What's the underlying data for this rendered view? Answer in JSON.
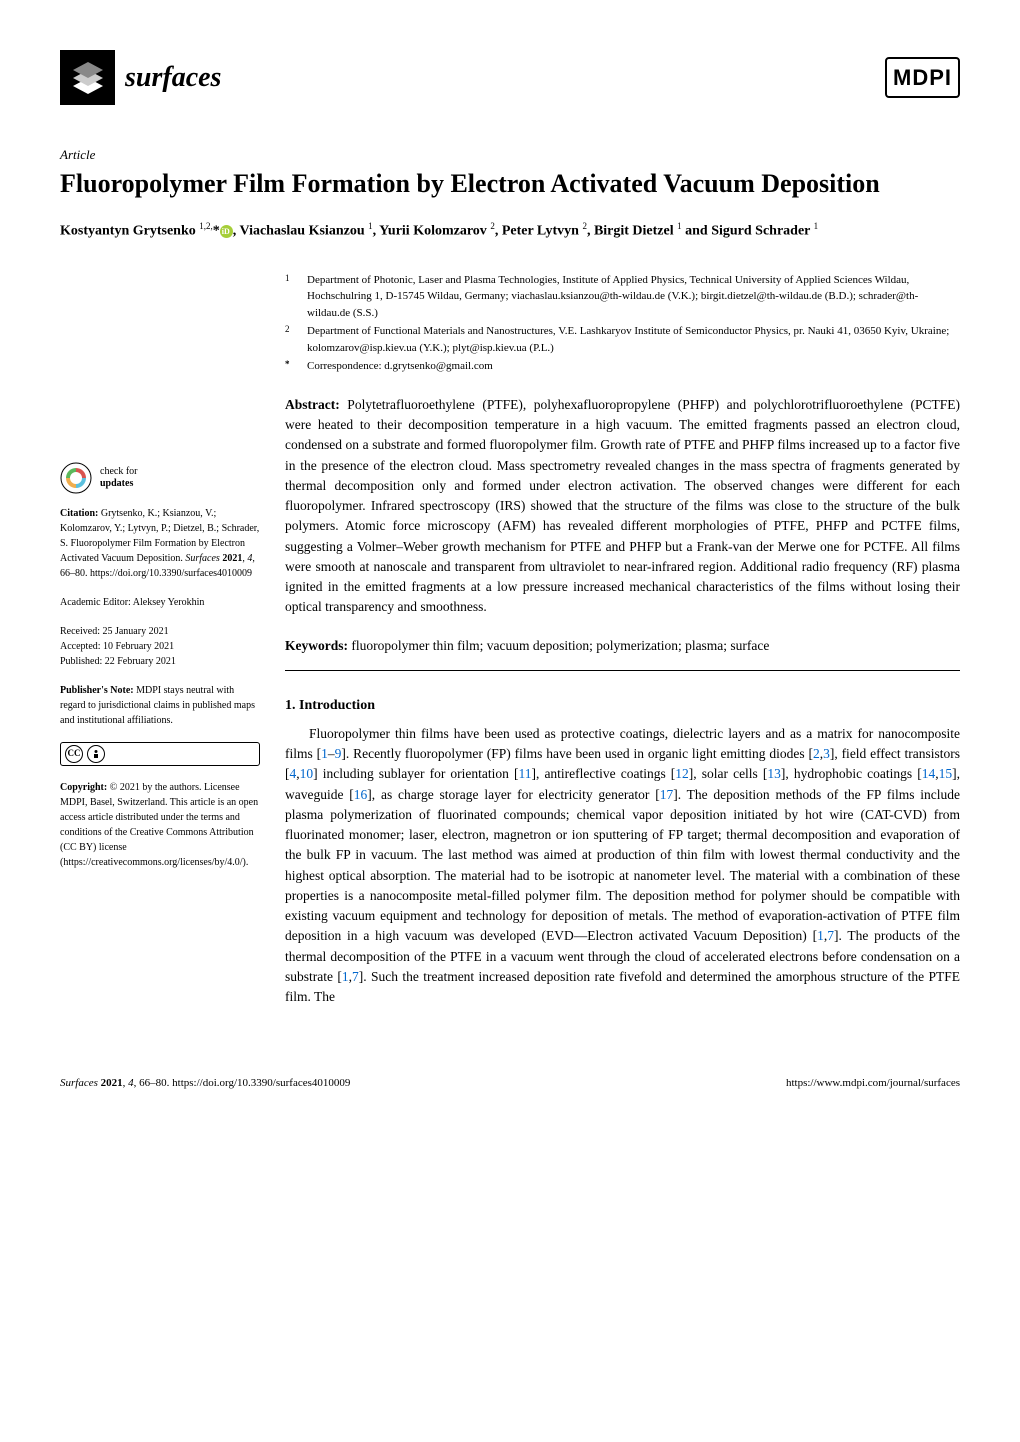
{
  "header": {
    "journal_name": "surfaces",
    "publisher_logo": "MDPI"
  },
  "article": {
    "type": "Article",
    "title": "Fluoropolymer Film Formation by Electron Activated Vacuum Deposition",
    "authors_line": "Kostyantyn Grytsenko ¹,²,* , Viachaslau Ksianzou ¹, Yurii Kolomzarov ², Peter Lytvyn ², Birgit Dietzel ¹ and Sigurd Schrader ¹"
  },
  "affiliations": {
    "a1": {
      "marker": "1",
      "text": "Department of Photonic, Laser and Plasma Technologies, Institute of Applied Physics, Technical University of Applied Sciences Wildau, Hochschulring 1, D-15745 Wildau, Germany; viachaslau.ksianzou@th-wildau.de (V.K.); birgit.dietzel@th-wildau.de (B.D.); schrader@th-wildau.de (S.S.)"
    },
    "a2": {
      "marker": "2",
      "text": "Department of Functional Materials and Nanostructures, V.E. Lashkaryov Institute of Semiconductor Physics, pr. Nauki 41, 03650 Kyiv, Ukraine; kolomzarov@isp.kiev.ua (Y.K.); plyt@isp.kiev.ua (P.L.)"
    },
    "corr": {
      "marker": "*",
      "text": "Correspondence: d.grytsenko@gmail.com"
    }
  },
  "abstract": {
    "label": "Abstract:",
    "text": " Polytetrafluoroethylene (PTFE), polyhexafluoropropylene (PHFP) and polychlorotrifluoroethylene (PCTFE) were heated to their decomposition temperature in a high vacuum. The emitted fragments passed an electron cloud, condensed on a substrate and formed fluoropolymer film. Growth rate of PTFE and PHFP films increased up to a factor five in the presence of the electron cloud. Mass spectrometry revealed changes in the mass spectra of fragments generated by thermal decomposition only and formed under electron activation. The observed changes were different for each fluoropolymer. Infrared spectroscopy (IRS) showed that the structure of the films was close to the structure of the bulk polymers. Atomic force microscopy (AFM) has revealed different morphologies of PTFE, PHFP and PCTFE films, suggesting a Volmer–Weber growth mechanism for PTFE and PHFP but a Frank-van der Merwe one for PCTFE. All films were smooth at nanoscale and transparent from ultraviolet to near-infrared region. Additional radio frequency (RF) plasma ignited in the emitted fragments at a low pressure increased mechanical characteristics of the films without losing their optical transparency and smoothness."
  },
  "keywords": {
    "label": "Keywords:",
    "text": " fluoropolymer thin film; vacuum deposition; polymerization; plasma; surface"
  },
  "sidebar": {
    "check_updates": {
      "line1": "check for",
      "line2": "updates"
    },
    "citation": "Citation: Grytsenko, K.; Ksianzou, V.; Kolomzarov, Y.; Lytvyn, P.; Dietzel, B.; Schrader, S. Fluoropolymer Film Formation by Electron Activated Vacuum Deposition. Surfaces 2021, 4, 66–80. https://doi.org/10.3390/surfaces4010009",
    "editor": "Academic Editor: Aleksey Yerokhin",
    "received": "Received: 25 January 2021",
    "accepted": "Accepted: 10 February 2021",
    "published": "Published: 22 February 2021",
    "publishers_note": "Publisher's Note: MDPI stays neutral with regard to jurisdictional claims in published maps and institutional affiliations.",
    "copyright": "Copyright: © 2021 by the authors. Licensee MDPI, Basel, Switzerland. This article is an open access article distributed under the terms and conditions of the Creative Commons Attribution (CC BY) license (https://creativecommons.org/licenses/by/4.0/)."
  },
  "section1": {
    "heading": "1. Introduction",
    "body_html": "Fluoropolymer thin films have been used as protective coatings, dielectric layers and as a matrix for nanocomposite films [<span class='ref-link'>1</span>–<span class='ref-link'>9</span>]. Recently fluoropolymer (FP) films have been used in organic light emitting diodes [<span class='ref-link'>2</span>,<span class='ref-link'>3</span>], field effect transistors [<span class='ref-link'>4</span>,<span class='ref-link'>10</span>] including sublayer for orientation [<span class='ref-link'>11</span>], antireflective coatings [<span class='ref-link'>12</span>], solar cells [<span class='ref-link'>13</span>], hydrophobic coatings [<span class='ref-link'>14</span>,<span class='ref-link'>15</span>], waveguide [<span class='ref-link'>16</span>], as charge storage layer for electricity generator [<span class='ref-link'>17</span>]. The deposition methods of the FP films include plasma polymerization of fluorinated compounds; chemical vapor deposition initiated by hot wire (CAT-CVD) from fluorinated monomer; laser, electron, magnetron or ion sputtering of FP target; thermal decomposition and evaporation of the bulk FP in vacuum. The last method was aimed at production of thin film with lowest thermal conductivity and the highest optical absorption. The material had to be isotropic at nanometer level. The material with a combination of these properties is a nanocomposite metal-filled polymer film. The deposition method for polymer should be compatible with existing vacuum equipment and technology for deposition of metals. The method of evaporation-activation of PTFE film deposition in a high vacuum was developed (EVD—Electron activated Vacuum Deposition) [<span class='ref-link'>1</span>,<span class='ref-link'>7</span>]. The products of the thermal decomposition of the PTFE in a vacuum went through the cloud of accelerated electrons before condensation on a substrate [<span class='ref-link'>1</span>,<span class='ref-link'>7</span>]. Such the treatment increased deposition rate fivefold and determined the amorphous structure of the PTFE film. The"
  },
  "footer": {
    "left": "Surfaces 2021, 4, 66–80. https://doi.org/10.3390/surfaces4010009",
    "right": "https://www.mdpi.com/journal/surfaces"
  },
  "colors": {
    "background": "#ffffff",
    "text": "#000000",
    "link": "#0066cc",
    "orcid": "#a6ce39"
  }
}
